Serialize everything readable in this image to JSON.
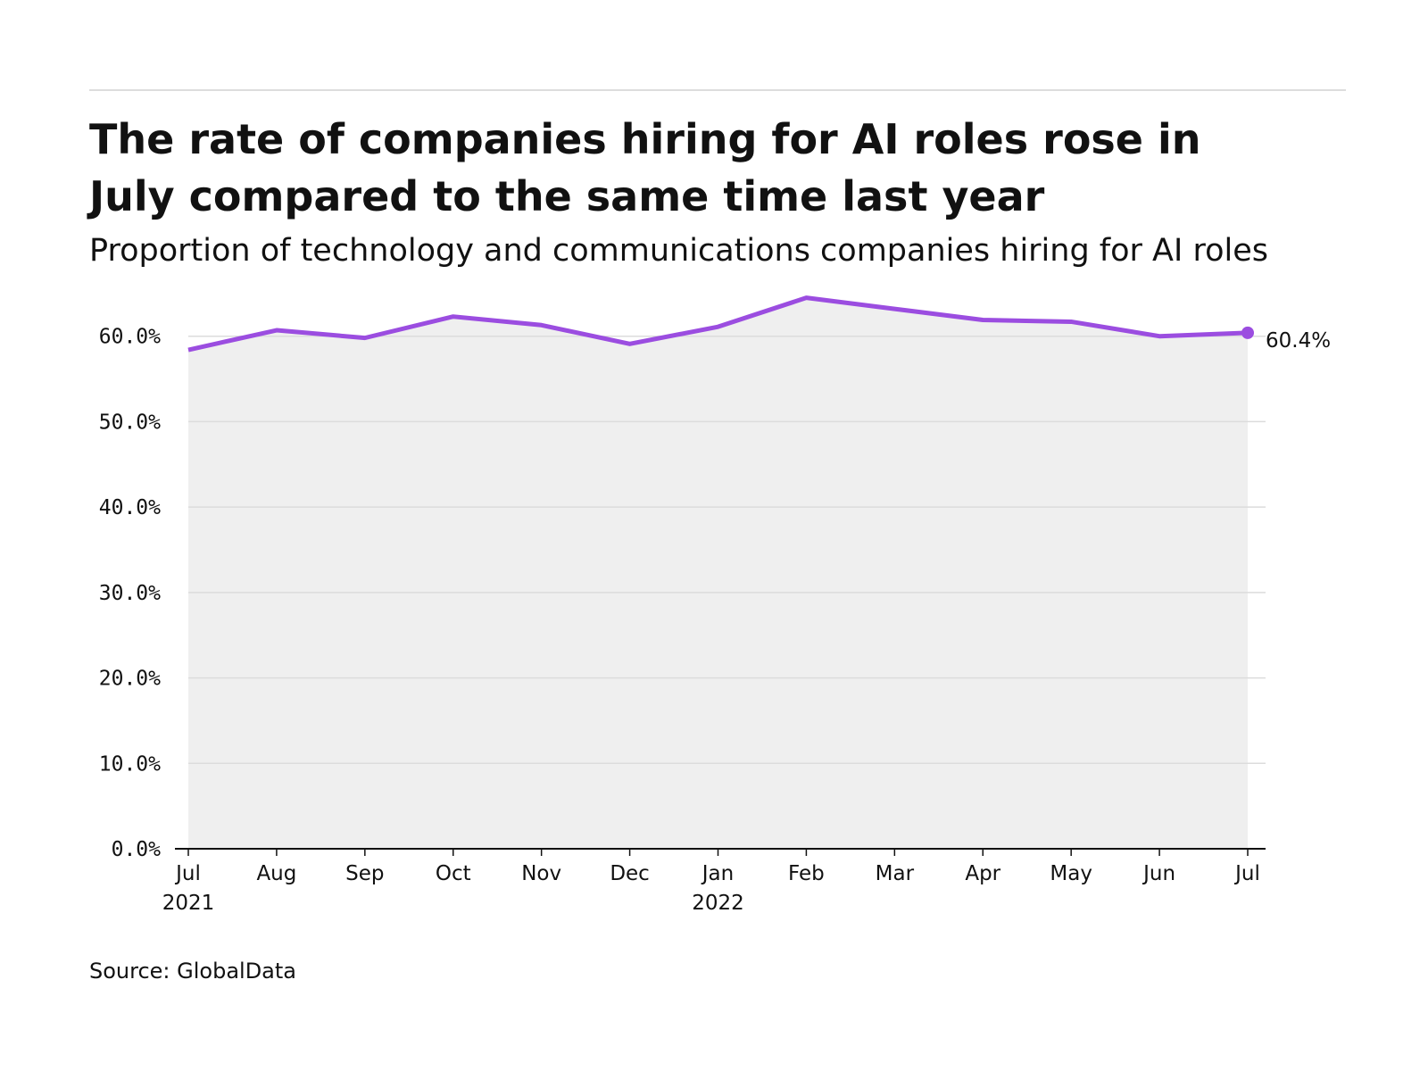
{
  "chart_data": {
    "type": "area-line",
    "title": "The rate of companies hiring for AI roles rose in July compared to the same time last year",
    "subtitle": "Proportion of technology and communications companies hiring for AI roles",
    "source": "Source: GlobalData",
    "categories": [
      "Jul 2021",
      "Aug",
      "Sep",
      "Oct",
      "Nov",
      "Dec",
      "Jan 2022",
      "Feb",
      "Mar",
      "Apr",
      "May",
      "Jun",
      "Jul"
    ],
    "series": [
      {
        "color": "#9b4de0",
        "area_color": "#efefef",
        "values": [
          58.4,
          60.7,
          59.8,
          62.3,
          61.3,
          59.1,
          61.1,
          64.5,
          63.2,
          61.9,
          61.7,
          60.0,
          60.4
        ],
        "value_labels": [
          null,
          null,
          null,
          null,
          null,
          null,
          null,
          null,
          null,
          null,
          null,
          null,
          "60.4%"
        ]
      }
    ],
    "ylim": [
      0,
      70
    ],
    "yticks": [
      {
        "value": 0,
        "label": "0.0%"
      },
      {
        "value": 10,
        "label": "10.0%"
      },
      {
        "value": 20,
        "label": "20.0%"
      },
      {
        "value": 30,
        "label": "30.0%"
      },
      {
        "value": 40,
        "label": "40.0%"
      },
      {
        "value": 50,
        "label": "50.0%"
      },
      {
        "value": 60,
        "label": "60.0%"
      }
    ],
    "grid": true
  }
}
